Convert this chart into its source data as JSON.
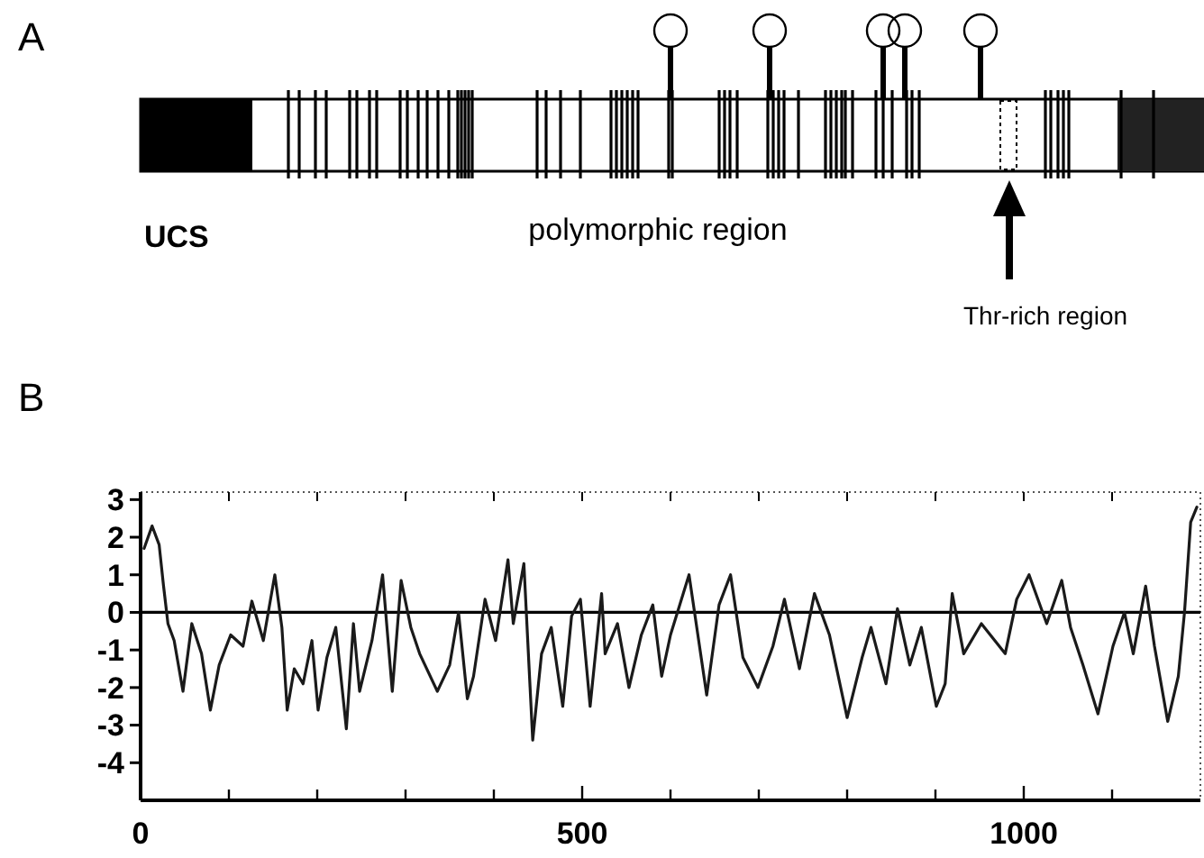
{
  "chart_data": [
    {
      "type": "other",
      "title": "A",
      "annotations": [
        "UCS",
        "polymorphic region",
        "Thr-rich region"
      ]
    },
    {
      "type": "line",
      "title": "B",
      "xlim": [
        0,
        1200
      ],
      "ylim": [
        -5,
        3.2
      ],
      "xticks": [
        0,
        {
          "value": 100,
          "label": null
        },
        {
          "value": 200,
          "label": null
        },
        {
          "value": 300,
          "label": null
        },
        {
          "value": 400,
          "label": null
        },
        500,
        {
          "value": 600,
          "label": null
        },
        {
          "value": 700,
          "label": null
        },
        {
          "value": 800,
          "label": null
        },
        {
          "value": 900,
          "label": null
        },
        1000,
        {
          "value": 1100,
          "label": null
        }
      ],
      "yticks": [
        -4,
        -3,
        -2,
        -1,
        0,
        1,
        2,
        3
      ],
      "ref_lines": [
        {
          "axis": "y",
          "value": 0,
          "color": "#000000"
        }
      ],
      "series": [
        {
          "color": "#1a1a1a",
          "x": [
            4,
            13,
            21,
            26,
            31,
            38,
            48,
            58,
            69,
            79,
            89,
            102,
            116,
            126,
            139,
            152,
            160,
            166,
            174,
            184,
            194,
            201,
            211,
            221,
            233,
            241,
            248,
            262,
            274,
            285,
            295,
            306,
            316,
            336,
            350,
            360,
            370,
            377,
            390,
            402,
            416,
            422,
            434,
            444,
            454,
            465,
            478,
            488,
            498,
            509,
            522,
            526,
            540,
            553,
            567,
            580,
            590,
            600,
            621,
            641,
            655,
            668,
            682,
            699,
            716,
            729,
            746,
            763,
            780,
            800,
            817,
            827,
            844,
            857,
            871,
            884,
            901,
            911,
            919,
            932,
            952,
            979,
            992,
            1006,
            1026,
            1043,
            1053,
            1067,
            1084,
            1101,
            1114,
            1124,
            1138,
            1148,
            1163,
            1175,
            1182,
            1189,
            1196
          ],
          "values": [
            1.7,
            2.3,
            1.8,
            0.7,
            -0.3,
            -0.75,
            -2.1,
            -0.3,
            -1.1,
            -2.6,
            -1.4,
            -0.6,
            -0.9,
            0.3,
            -0.75,
            1.0,
            -0.4,
            -2.6,
            -1.5,
            -1.9,
            -0.75,
            -2.6,
            -1.2,
            -0.4,
            -3.1,
            -0.3,
            -2.1,
            -0.75,
            1.0,
            -2.1,
            0.85,
            -0.4,
            -1.1,
            -2.1,
            -1.4,
            0,
            -2.3,
            -1.7,
            0.35,
            -0.75,
            1.4,
            -0.3,
            1.3,
            -3.4,
            -1.1,
            -0.4,
            -2.5,
            -0.1,
            0.35,
            -2.5,
            0.5,
            -1.1,
            -0.3,
            -2.0,
            -0.6,
            0.2,
            -1.7,
            -0.6,
            1.0,
            -2.2,
            0.2,
            1.0,
            -1.2,
            -2.0,
            -0.9,
            0.35,
            -1.5,
            0.5,
            -0.6,
            -2.8,
            -1.2,
            -0.4,
            -1.9,
            0.1,
            -1.4,
            -0.4,
            -2.5,
            -1.9,
            0.5,
            -1.1,
            -0.3,
            -1.1,
            0.35,
            1.0,
            -0.3,
            0.85,
            -0.4,
            -1.4,
            -2.7,
            -0.9,
            0,
            -1.1,
            0.7,
            -0.9,
            -2.9,
            -1.7,
            0,
            2.4,
            2.8
          ]
        }
      ]
    }
  ]
}
